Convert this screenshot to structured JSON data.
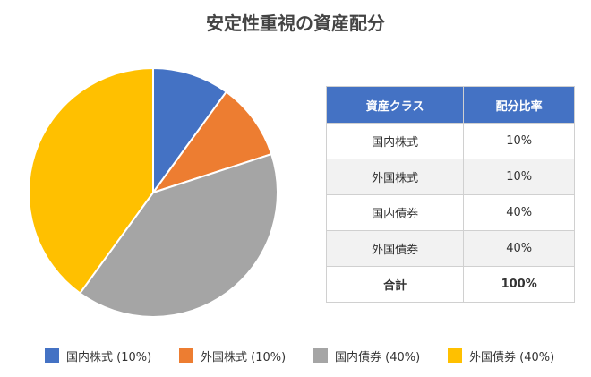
{
  "chart_data": {
    "type": "pie",
    "title": "安定性重視の資産配分",
    "categories": [
      "国内株式",
      "外国株式",
      "国内債券",
      "外国債券"
    ],
    "values": [
      10,
      10,
      40,
      40
    ],
    "colors": [
      "#4472c4",
      "#ed7d31",
      "#a5a5a5",
      "#ffc000"
    ],
    "legend": [
      "国内株式 (10%)",
      "外国株式 (10%)",
      "国内債券 (40%)",
      "外国債券 (40%)"
    ],
    "legend_position": "bottom"
  },
  "table": {
    "headers": [
      "資産クラス",
      "配分比率"
    ],
    "rows": [
      [
        "国内株式",
        "10%"
      ],
      [
        "外国株式",
        "10%"
      ],
      [
        "国内債券",
        "40%"
      ],
      [
        "外国債券",
        "40%"
      ]
    ],
    "total": [
      "合計",
      "100%"
    ]
  }
}
